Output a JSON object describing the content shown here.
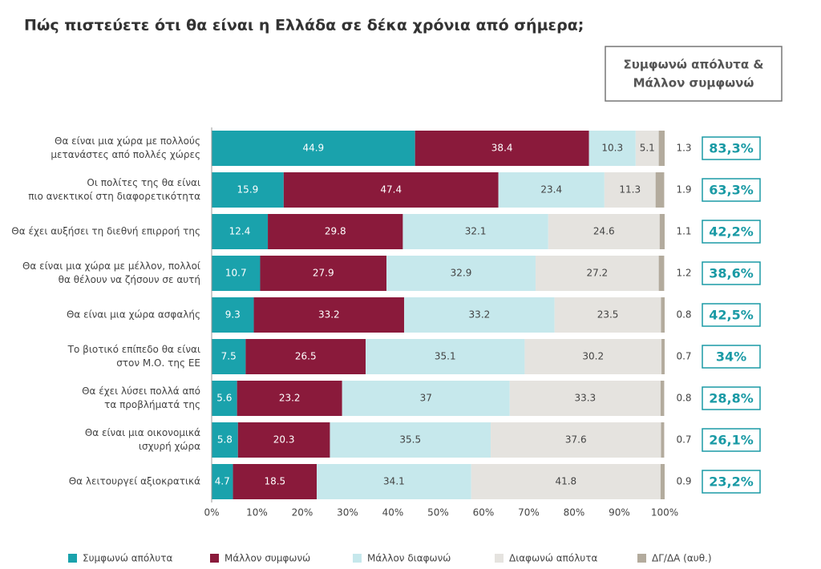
{
  "chart_data": {
    "type": "stacked-bar-horizontal",
    "title": "Πώς πιστεύετε ότι θα είναι η Ελλάδα σε δέκα χρόνια από σήμερα;",
    "categories": [
      [
        "Θα είναι μια χώρα με πολλούς",
        "μετανάστες από πολλές χώρες"
      ],
      [
        "Οι πολίτες της θα είναι",
        "πιο ανεκτικοί στη διαφορετικότητα"
      ],
      [
        "Θα έχει αυξήσει τη διεθνή επιρροή της"
      ],
      [
        "Θα είναι μια χώρα με μέλλον, πολλοί",
        "θα θέλουν να ζήσουν σε αυτή"
      ],
      [
        "Θα είναι μια χώρα ασφαλής"
      ],
      [
        "Το βιοτικό επίπεδο θα είναι",
        "στον Μ.Ο. της ΕΕ"
      ],
      [
        "Θα έχει λύσει πολλά από",
        "τα προβλήματά της"
      ],
      [
        "Θα είναι μια οικονομικά",
        "ισχυρή χώρα"
      ],
      [
        "Θα λειτουργεί αξιοκρατικά"
      ]
    ],
    "series": [
      {
        "name": "Συμφωνώ απόλυτα",
        "color": "#1aa2ac",
        "label_color": "#ffffff",
        "values": [
          44.9,
          15.9,
          12.4,
          10.7,
          9.3,
          7.5,
          5.6,
          5.8,
          4.7
        ]
      },
      {
        "name": "Μάλλον συμφωνώ",
        "color": "#8a1a3b",
        "label_color": "#ffffff",
        "values": [
          38.4,
          47.4,
          29.8,
          27.9,
          33.2,
          26.5,
          23.2,
          20.3,
          18.5
        ]
      },
      {
        "name": "Μάλλον διαφωνώ",
        "color": "#c6e8ec",
        "label_color": "#444444",
        "values": [
          10.3,
          23.4,
          32.1,
          32.9,
          33.2,
          35.1,
          37,
          35.5,
          34.1
        ]
      },
      {
        "name": "Διαφωνώ απόλυτα",
        "color": "#e5e3df",
        "label_color": "#444444",
        "values": [
          5.1,
          11.3,
          24.6,
          27.2,
          23.5,
          30.2,
          33.3,
          37.6,
          41.8
        ]
      },
      {
        "name": "ΔΓ/ΔΑ (αυθ.)",
        "color": "#b3ab9d",
        "label_color": "#444444",
        "values": [
          1.3,
          1.9,
          1.1,
          1.2,
          0.8,
          0.7,
          0.8,
          0.7,
          0.9
        ]
      }
    ],
    "xlim": [
      0,
      100
    ],
    "xticks": [
      {
        "value": 0,
        "label": "0%"
      },
      {
        "value": 10,
        "label": "10%"
      },
      {
        "value": 20,
        "label": "20%"
      },
      {
        "value": 30,
        "label": "30%"
      },
      {
        "value": 40,
        "label": "40%"
      },
      {
        "value": 50,
        "label": "50%"
      },
      {
        "value": 60,
        "label": "60%"
      },
      {
        "value": 70,
        "label": "70%"
      },
      {
        "value": 80,
        "label": "80%"
      },
      {
        "value": 90,
        "label": "90%"
      },
      {
        "value": 100,
        "label": "100%"
      }
    ],
    "summary": {
      "title": [
        "Συμφωνώ απόλυτα &",
        "Μάλλον συμφωνώ"
      ],
      "values": [
        83.3,
        63.3,
        42.2,
        38.6,
        42.5,
        34,
        28.8,
        26.1,
        23.2
      ],
      "value_labels": [
        "83,3%",
        "63,3%",
        "42,2%",
        "38,6%",
        "42,5%",
        "34%",
        "28,8%",
        "26,1%",
        "23,2%"
      ]
    }
  }
}
